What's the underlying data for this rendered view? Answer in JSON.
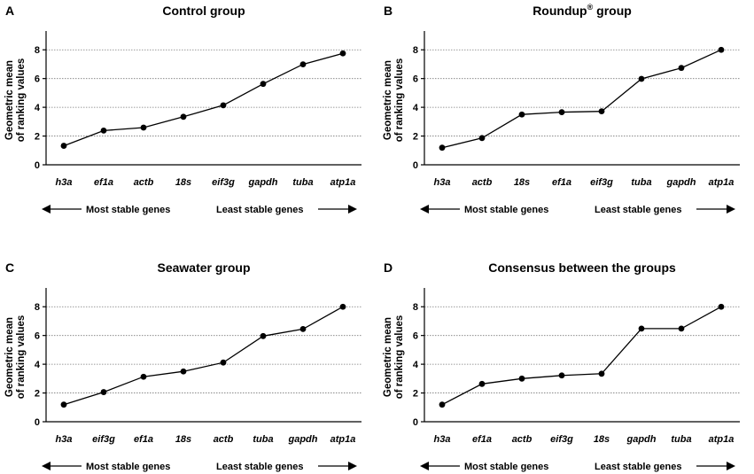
{
  "chart_data": [
    {
      "panel": "A",
      "type": "line",
      "title": "Control group",
      "ylabel_line1": "Geometric mean",
      "ylabel_line2": "of ranking values",
      "ylim": [
        0,
        9
      ],
      "yticks": [
        0,
        2,
        4,
        6,
        8
      ],
      "grid": true,
      "categories": [
        "h3a",
        "ef1a",
        "actb",
        "18s",
        "eif3g",
        "gapdh",
        "tuba",
        "atp1a"
      ],
      "values": [
        1.32,
        2.38,
        2.59,
        3.34,
        4.14,
        5.63,
        6.99,
        7.75
      ],
      "most_stable_label": "Most stable genes",
      "least_stable_label": "Least stable genes"
    },
    {
      "panel": "B",
      "type": "line",
      "title": "Roundup",
      "title_superscript": "®",
      "title_suffix": " group",
      "ylabel_line1": "Geometric mean",
      "ylabel_line2": "of ranking values",
      "ylim": [
        0,
        9
      ],
      "yticks": [
        0,
        2,
        4,
        6,
        8
      ],
      "grid": true,
      "categories": [
        "h3a",
        "actb",
        "18s",
        "ef1a",
        "eif3g",
        "tuba",
        "gapdh",
        "atp1a"
      ],
      "values": [
        1.19,
        1.86,
        3.5,
        3.66,
        3.72,
        5.98,
        6.74,
        8.0
      ],
      "most_stable_label": "Most stable genes",
      "least_stable_label": "Least stable genes"
    },
    {
      "panel": "C",
      "type": "line",
      "title": "Seawater group",
      "ylabel_line1": "Geometric mean",
      "ylabel_line2": "of ranking values",
      "ylim": [
        0,
        9
      ],
      "yticks": [
        0,
        2,
        4,
        6,
        8
      ],
      "grid": true,
      "categories": [
        "h3a",
        "eif3g",
        "ef1a",
        "18s",
        "actb",
        "tuba",
        "gapdh",
        "atp1a"
      ],
      "values": [
        1.19,
        2.06,
        3.13,
        3.5,
        4.12,
        5.96,
        6.45,
        8.0
      ],
      "most_stable_label": "Most stable genes",
      "least_stable_label": "Least stable genes"
    },
    {
      "panel": "D",
      "type": "line",
      "title": "Consensus between the groups",
      "ylabel_line1": "Geometric mean",
      "ylabel_line2": "of ranking values",
      "ylim": [
        0,
        9
      ],
      "yticks": [
        0,
        2,
        4,
        6,
        8
      ],
      "grid": true,
      "categories": [
        "h3a",
        "ef1a",
        "actb",
        "eif3g",
        "18s",
        "gapdh",
        "tuba",
        "atp1a"
      ],
      "values": [
        1.19,
        2.63,
        3.0,
        3.22,
        3.34,
        6.48,
        6.48,
        8.0
      ],
      "most_stable_label": "Most stable genes",
      "least_stable_label": "Least stable genes"
    }
  ]
}
